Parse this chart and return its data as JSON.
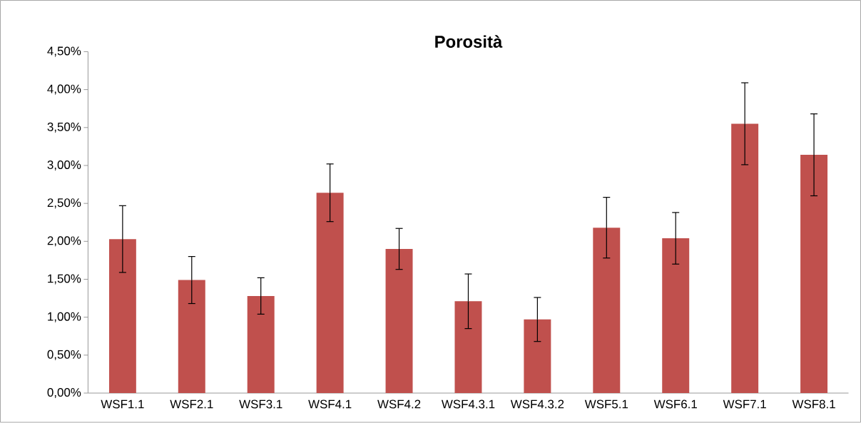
{
  "chart_data": {
    "type": "bar",
    "title": "Porosità",
    "categories": [
      "WSF1.1",
      "WSF2.1",
      "WSF3.1",
      "WSF4.1",
      "WSF4.2",
      "WSF4.3.1",
      "WSF4.3.2",
      "WSF5.1",
      "WSF6.1",
      "WSF7.1",
      "WSF8.1"
    ],
    "values": [
      2.03,
      1.49,
      1.28,
      2.64,
      1.9,
      1.21,
      0.97,
      2.18,
      2.04,
      3.55,
      3.14
    ],
    "errors": [
      0.44,
      0.31,
      0.24,
      0.38,
      0.27,
      0.36,
      0.29,
      0.4,
      0.34,
      0.54,
      0.54
    ],
    "color": "#c0504d",
    "ylim": [
      0,
      4.5
    ],
    "yticks": [
      {
        "value": 0,
        "label": "0,00%"
      },
      {
        "value": 0.5,
        "label": "0,50%"
      },
      {
        "value": 1,
        "label": "1,00%"
      },
      {
        "value": 1.5,
        "label": "1,50%"
      },
      {
        "value": 2,
        "label": "2,00%"
      },
      {
        "value": 2.5,
        "label": "2,50%"
      },
      {
        "value": 3,
        "label": "3,00%"
      },
      {
        "value": 3.5,
        "label": "3,50%"
      },
      {
        "value": 4,
        "label": "4,00%"
      },
      {
        "value": 4.5,
        "label": "4,50%"
      }
    ],
    "grid": false
  }
}
